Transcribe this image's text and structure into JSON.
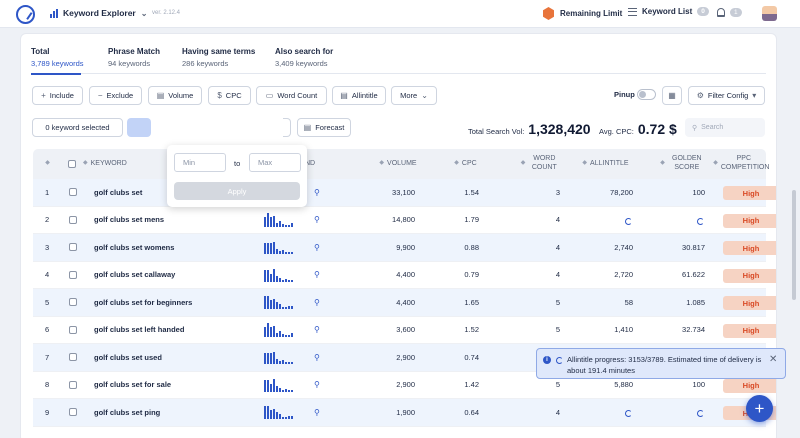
{
  "header": {
    "app_name": "Keyword Explorer",
    "version": "ver. 2.12.4",
    "remaining_limit_label": "Remaining Limit",
    "keyword_list_label": "Keyword List",
    "keyword_list_count": "0",
    "notification_count": "1"
  },
  "tabs": [
    {
      "title": "Total",
      "count": "3,789 keywords"
    },
    {
      "title": "Phrase Match",
      "count": "94 keywords"
    },
    {
      "title": "Having same terms",
      "count": "286 keywords"
    },
    {
      "title": "Also search for",
      "count": "3,409 keywords"
    }
  ],
  "toolbar": {
    "include": "Include",
    "exclude": "Exclude",
    "volume": "Volume",
    "cpc": "CPC",
    "word_count": "Word Count",
    "allintitle": "Allintitle",
    "more": "More",
    "pinup": "Pinup",
    "filter_config": "Filter Config",
    "forecast": "Forecast"
  },
  "selection": {
    "label": "0 keyword selected"
  },
  "stats": {
    "total_label": "Total Search Vol:",
    "total_value": "1,328,420",
    "avg_label": "Avg. CPC:",
    "avg_value": "0.72 $"
  },
  "search": {
    "placeholder": "Search"
  },
  "range_popover": {
    "min": "Min",
    "to": "to",
    "max": "Max",
    "apply": "Apply"
  },
  "table": {
    "headers": {
      "keyword": "KEYWORD",
      "trend": "TREND",
      "volume": "VOLUME",
      "cpc": "CPC",
      "word_count": "WORD COUNT",
      "allintitle": "ALLINTITLE",
      "golden_score": "GOLDEN SCORE",
      "ppc": "PPC COMPETITION"
    },
    "rows": [
      {
        "n": "1",
        "keyword": "golf clubs set",
        "volume": "33,100",
        "cpc": "1.54",
        "wc": "3",
        "allintitle": "78,200",
        "golden": "100",
        "ppc": "High"
      },
      {
        "n": "2",
        "keyword": "golf clubs set mens",
        "volume": "14,800",
        "cpc": "1.79",
        "wc": "4",
        "allintitle": "",
        "golden": "",
        "ppc": "High"
      },
      {
        "n": "3",
        "keyword": "golf clubs set womens",
        "volume": "9,900",
        "cpc": "0.88",
        "wc": "4",
        "allintitle": "2,740",
        "golden": "30.817",
        "ppc": "High"
      },
      {
        "n": "4",
        "keyword": "golf clubs set callaway",
        "volume": "4,400",
        "cpc": "0.79",
        "wc": "4",
        "allintitle": "2,720",
        "golden": "61.622",
        "ppc": "High"
      },
      {
        "n": "5",
        "keyword": "golf clubs set for beginners",
        "volume": "4,400",
        "cpc": "1.65",
        "wc": "5",
        "allintitle": "58",
        "golden": "1.085",
        "ppc": "High"
      },
      {
        "n": "6",
        "keyword": "golf clubs set left handed",
        "volume": "3,600",
        "cpc": "1.52",
        "wc": "5",
        "allintitle": "1,410",
        "golden": "32.734",
        "ppc": "High"
      },
      {
        "n": "7",
        "keyword": "golf clubs set used",
        "volume": "2,900",
        "cpc": "0.74",
        "wc": "4",
        "allintitle": "",
        "golden": "",
        "ppc": "High"
      },
      {
        "n": "8",
        "keyword": "golf clubs set for sale",
        "volume": "2,900",
        "cpc": "1.42",
        "wc": "5",
        "allintitle": "5,880",
        "golden": "100",
        "ppc": "High"
      },
      {
        "n": "9",
        "keyword": "golf clubs set ping",
        "volume": "1,900",
        "cpc": "0.64",
        "wc": "4",
        "allintitle": "",
        "golden": "",
        "ppc": "High"
      }
    ]
  },
  "toast": {
    "message": "Allintitle progress: 3153/3789. Estimated time of delivery is about 191.4 minutes"
  },
  "colors": {
    "accent": "#2e56c7",
    "high_bg": "#f6d3c3",
    "high_text": "#d94a25"
  }
}
